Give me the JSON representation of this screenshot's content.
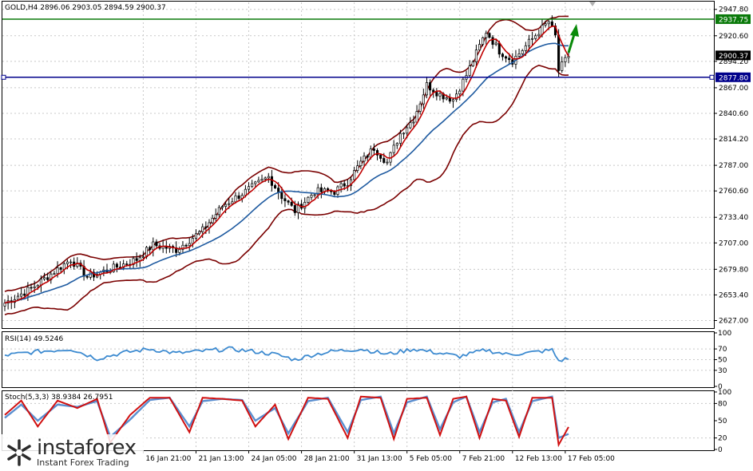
{
  "chart_data": [
    {
      "type": "candlestick",
      "header": "GOLD,H4  2896.06 2903.05 2894.59 2900.37",
      "symbol": "GOLD,H4",
      "ohlc_last": {
        "open": 2896.06,
        "high": 2903.05,
        "low": 2894.59,
        "close": 2900.37
      },
      "ylim": [
        2620,
        2955
      ],
      "price_ticks": [
        "2947.80",
        "2920.60",
        "2894.20",
        "2867.00",
        "2840.60",
        "2814.20",
        "2787.00",
        "2760.60",
        "2733.40",
        "2707.00",
        "2679.80",
        "2653.40",
        "2627.00"
      ],
      "horizontal_lines": [
        {
          "value": 2937.75,
          "label": "2937.75",
          "color": "#0a7a0a"
        },
        {
          "value": 2877.8,
          "label": "2877.80",
          "color": "#00008b"
        }
      ],
      "current_price": {
        "value": 2900.37,
        "label": "2900.37"
      },
      "date_labels": [
        "16 Jan 21:00",
        "21 Jan 13:00",
        "24 Jan 05:00",
        "28 Jan 21:00",
        "31 Jan 13:00",
        "5 Feb 05:00",
        "7 Feb 21:00",
        "12 Feb 13:00",
        "17 Feb 05:00"
      ],
      "date_positions_bar": [
        42,
        58,
        74,
        90,
        106,
        122,
        138,
        154,
        170
      ],
      "num_bars": 172,
      "anchors": [
        [
          0,
          2645
        ],
        [
          8,
          2660
        ],
        [
          20,
          2690
        ],
        [
          25,
          2672
        ],
        [
          32,
          2680
        ],
        [
          40,
          2690
        ],
        [
          45,
          2705
        ],
        [
          52,
          2700
        ],
        [
          60,
          2720
        ],
        [
          66,
          2745
        ],
        [
          72,
          2758
        ],
        [
          80,
          2775
        ],
        [
          84,
          2755
        ],
        [
          88,
          2740
        ],
        [
          94,
          2760
        ],
        [
          100,
          2760
        ],
        [
          104,
          2770
        ],
        [
          108,
          2790
        ],
        [
          112,
          2805
        ],
        [
          116,
          2790
        ],
        [
          120,
          2820
        ],
        [
          124,
          2835
        ],
        [
          128,
          2870
        ],
        [
          132,
          2860
        ],
        [
          136,
          2855
        ],
        [
          140,
          2880
        ],
        [
          146,
          2925
        ],
        [
          150,
          2905
        ],
        [
          154,
          2895
        ],
        [
          158,
          2910
        ],
        [
          162,
          2925
        ],
        [
          165,
          2935
        ],
        [
          167,
          2920
        ],
        [
          168,
          2885
        ],
        [
          170,
          2895
        ],
        [
          171,
          2900
        ]
      ],
      "colors": {
        "bull": "#000000",
        "bear": "#000000",
        "ma_fast": "#c00000",
        "ma_slow": "#1e5aa0",
        "bands": "#7a0000"
      }
    },
    {
      "type": "line",
      "indicator": "RSI(14) 49.5246",
      "ylim": [
        0,
        100
      ],
      "y_ticks": [
        "100",
        "70",
        "50",
        "30",
        "0"
      ],
      "levels": [
        70,
        50,
        30
      ],
      "anchors": [
        [
          0,
          58
        ],
        [
          10,
          65
        ],
        [
          20,
          70
        ],
        [
          28,
          52
        ],
        [
          36,
          63
        ],
        [
          44,
          70
        ],
        [
          52,
          62
        ],
        [
          60,
          66
        ],
        [
          68,
          70
        ],
        [
          76,
          65
        ],
        [
          82,
          60
        ],
        [
          88,
          50
        ],
        [
          94,
          60
        ],
        [
          100,
          66
        ],
        [
          108,
          70
        ],
        [
          116,
          60
        ],
        [
          124,
          70
        ],
        [
          132,
          62
        ],
        [
          138,
          56
        ],
        [
          146,
          68
        ],
        [
          152,
          60
        ],
        [
          158,
          62
        ],
        [
          166,
          68
        ],
        [
          168,
          48
        ],
        [
          171,
          52
        ]
      ],
      "color": "#3c8ad0"
    },
    {
      "type": "line",
      "indicator": "Stoch(5,3,3) 38.9384 26.7951",
      "ylim": [
        0,
        100
      ],
      "y_ticks": [
        "100",
        "80",
        "50",
        "20",
        "0"
      ],
      "levels": [
        80,
        20
      ],
      "main_anchors": [
        [
          0,
          60
        ],
        [
          5,
          85
        ],
        [
          10,
          40
        ],
        [
          16,
          85
        ],
        [
          22,
          72
        ],
        [
          28,
          88
        ],
        [
          32,
          12
        ],
        [
          38,
          60
        ],
        [
          44,
          90
        ],
        [
          50,
          90
        ],
        [
          56,
          30
        ],
        [
          60,
          90
        ],
        [
          66,
          88
        ],
        [
          72,
          85
        ],
        [
          76,
          40
        ],
        [
          82,
          78
        ],
        [
          86,
          18
        ],
        [
          92,
          90
        ],
        [
          98,
          88
        ],
        [
          104,
          20
        ],
        [
          108,
          92
        ],
        [
          114,
          90
        ],
        [
          118,
          18
        ],
        [
          122,
          88
        ],
        [
          128,
          90
        ],
        [
          132,
          25
        ],
        [
          136,
          88
        ],
        [
          140,
          92
        ],
        [
          144,
          20
        ],
        [
          148,
          88
        ],
        [
          152,
          85
        ],
        [
          156,
          22
        ],
        [
          160,
          90
        ],
        [
          166,
          90
        ],
        [
          168,
          8
        ],
        [
          171,
          39
        ]
      ],
      "signal_anchors": [
        [
          0,
          55
        ],
        [
          5,
          78
        ],
        [
          10,
          50
        ],
        [
          16,
          78
        ],
        [
          22,
          74
        ],
        [
          28,
          84
        ],
        [
          32,
          22
        ],
        [
          38,
          52
        ],
        [
          44,
          86
        ],
        [
          50,
          90
        ],
        [
          56,
          40
        ],
        [
          60,
          84
        ],
        [
          66,
          88
        ],
        [
          72,
          86
        ],
        [
          76,
          50
        ],
        [
          82,
          72
        ],
        [
          86,
          28
        ],
        [
          92,
          84
        ],
        [
          98,
          90
        ],
        [
          104,
          30
        ],
        [
          108,
          86
        ],
        [
          114,
          92
        ],
        [
          118,
          28
        ],
        [
          122,
          82
        ],
        [
          128,
          92
        ],
        [
          132,
          35
        ],
        [
          136,
          82
        ],
        [
          140,
          92
        ],
        [
          144,
          30
        ],
        [
          148,
          82
        ],
        [
          152,
          88
        ],
        [
          156,
          30
        ],
        [
          160,
          84
        ],
        [
          166,
          92
        ],
        [
          168,
          20
        ],
        [
          171,
          27
        ]
      ],
      "colors": {
        "main": "#d01010",
        "signal": "#5a8fd0"
      }
    }
  ],
  "branding": {
    "name": "instaforex",
    "tagline": "Instant Forex Trading"
  }
}
